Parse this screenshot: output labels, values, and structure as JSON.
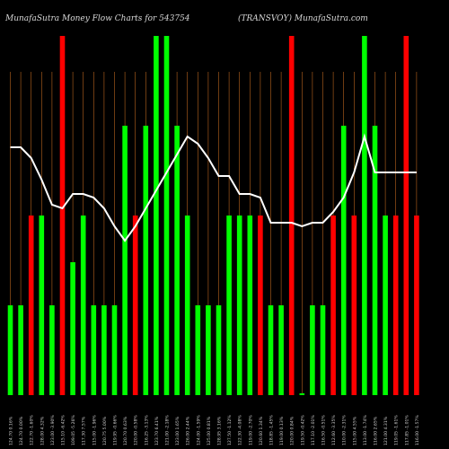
{
  "chart_data": {
    "type": "bar",
    "title_left": "MunafaSutra  Money Flow  Charts for 543754",
    "title_right": "(TRANSVOY) MunafaSutra.com",
    "colors": {
      "up": "#00ff00",
      "down": "#ff0000",
      "grid": "#b8651e",
      "line": "#ffffff",
      "background": "#000000"
    },
    "ylim": [
      0,
      100
    ],
    "categories": [
      "124.70 0.16%",
      "124.70 0.00%",
      "122.70 -1.60%",
      "128.00 4.32%",
      "123.00 -3.90%",
      "115.10 -6.42%",
      "109.05 -5.26%",
      "117.30 7.57%",
      "115.00 -1.96%",
      "120.75 5.00%",
      "119.95 -0.66%",
      "120.70 0.63%",
      "120.00 -0.58%",
      "116.25 -3.13%",
      "123.70 6.41%",
      "121.00 -2.18%",
      "123.00 1.65%",
      "126.00 2.44%",
      "124.00 -1.59%",
      "125.00 0.81%",
      "128.95 3.16%",
      "127.50 -1.12%",
      "122.30 -4.08%",
      "119.00 -2.70%",
      "120.60 1.34%",
      "118.85 -1.45%",
      "119.00 0.13%",
      "120.00 0.84%",
      "119.50 -0.42%",
      "117.10 -2.01%",
      "116.50 -0.51%",
      "112.60 -3.35%",
      "110.00 -2.31%",
      "115.00 4.55%",
      "113.00 -1.74%",
      "116.00 2.65%",
      "121.00 4.31%",
      "119.05 -1.61%",
      "117.85 -1.01%",
      "116.00 -1.57%"
    ],
    "values": [
      25,
      25,
      50,
      50,
      25,
      100,
      37,
      50,
      25,
      25,
      25,
      75,
      50,
      75,
      100,
      100,
      75,
      50,
      25,
      25,
      25,
      50,
      50,
      50,
      50,
      25,
      25,
      100,
      0.5,
      25,
      25,
      50,
      75,
      50,
      100,
      75,
      50,
      50,
      100,
      50
    ],
    "directions": [
      "up",
      "up",
      "down",
      "up",
      "up",
      "down",
      "up",
      "up",
      "up",
      "up",
      "up",
      "up",
      "down",
      "up",
      "up",
      "up",
      "up",
      "up",
      "up",
      "up",
      "up",
      "up",
      "up",
      "up",
      "down",
      "up",
      "up",
      "down",
      "up",
      "up",
      "up",
      "down",
      "up",
      "down",
      "up",
      "up",
      "up",
      "down",
      "down",
      "down"
    ],
    "line": [
      69,
      69,
      66,
      60,
      53,
      52,
      56,
      56,
      55,
      52,
      47,
      43,
      47,
      52,
      57,
      62,
      67,
      72,
      70,
      66,
      61,
      61,
      56,
      56,
      55,
      48,
      48,
      48,
      47,
      48,
      48,
      51,
      55,
      62,
      72,
      62,
      62,
      62,
      62,
      62
    ]
  }
}
